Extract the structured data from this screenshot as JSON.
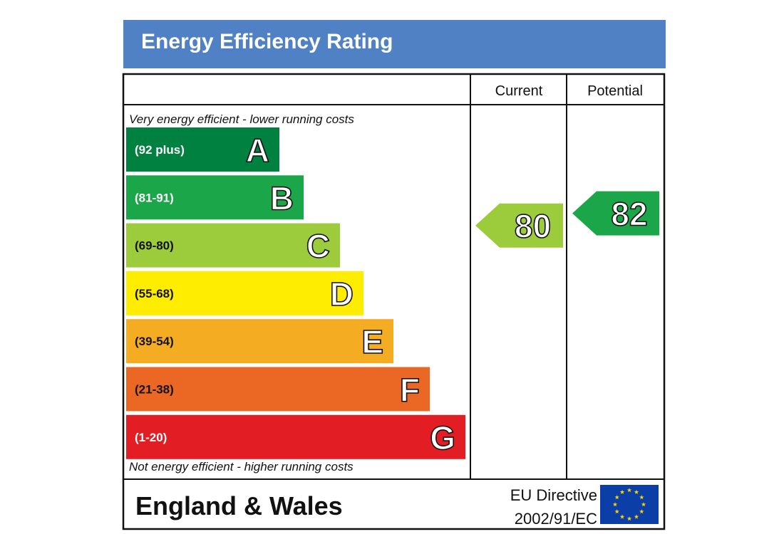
{
  "header": {
    "title": "Energy Efficiency Rating"
  },
  "columns": {
    "current": "Current",
    "potential": "Potential"
  },
  "scale": {
    "top_note": "Very energy efficient - lower running costs",
    "bottom_note": "Not energy efficient - higher running costs"
  },
  "chart_data": {
    "type": "bar",
    "title": "Energy Efficiency Rating",
    "bands": [
      {
        "letter": "A",
        "range": "(92 plus)",
        "min": 92,
        "max": 100,
        "color": "#008140"
      },
      {
        "letter": "B",
        "range": "(81-91)",
        "min": 81,
        "max": 91,
        "color": "#1ca64a"
      },
      {
        "letter": "C",
        "range": "(69-80)",
        "min": 69,
        "max": 80,
        "color": "#9ccb3b"
      },
      {
        "letter": "D",
        "range": "(55-68)",
        "min": 55,
        "max": 68,
        "color": "#ffed00"
      },
      {
        "letter": "E",
        "range": "(39-54)",
        "min": 39,
        "max": 54,
        "color": "#f4ad22"
      },
      {
        "letter": "F",
        "range": "(21-38)",
        "min": 21,
        "max": 38,
        "color": "#eb6724"
      },
      {
        "letter": "G",
        "range": "(1-20)",
        "min": 1,
        "max": 20,
        "color": "#e31d24"
      }
    ],
    "ratings": {
      "current": {
        "value": 80,
        "band": "C",
        "color": "#9ccb3b"
      },
      "potential": {
        "value": 82,
        "band": "B",
        "color": "#1ca64a"
      }
    }
  },
  "footer": {
    "region": "England & Wales",
    "directive_line1": "EU Directive",
    "directive_line2": "2002/91/EC",
    "flag_icon": "eu-flag-icon",
    "flag_color": "#0b3ea6",
    "star_color": "#ffd200"
  }
}
